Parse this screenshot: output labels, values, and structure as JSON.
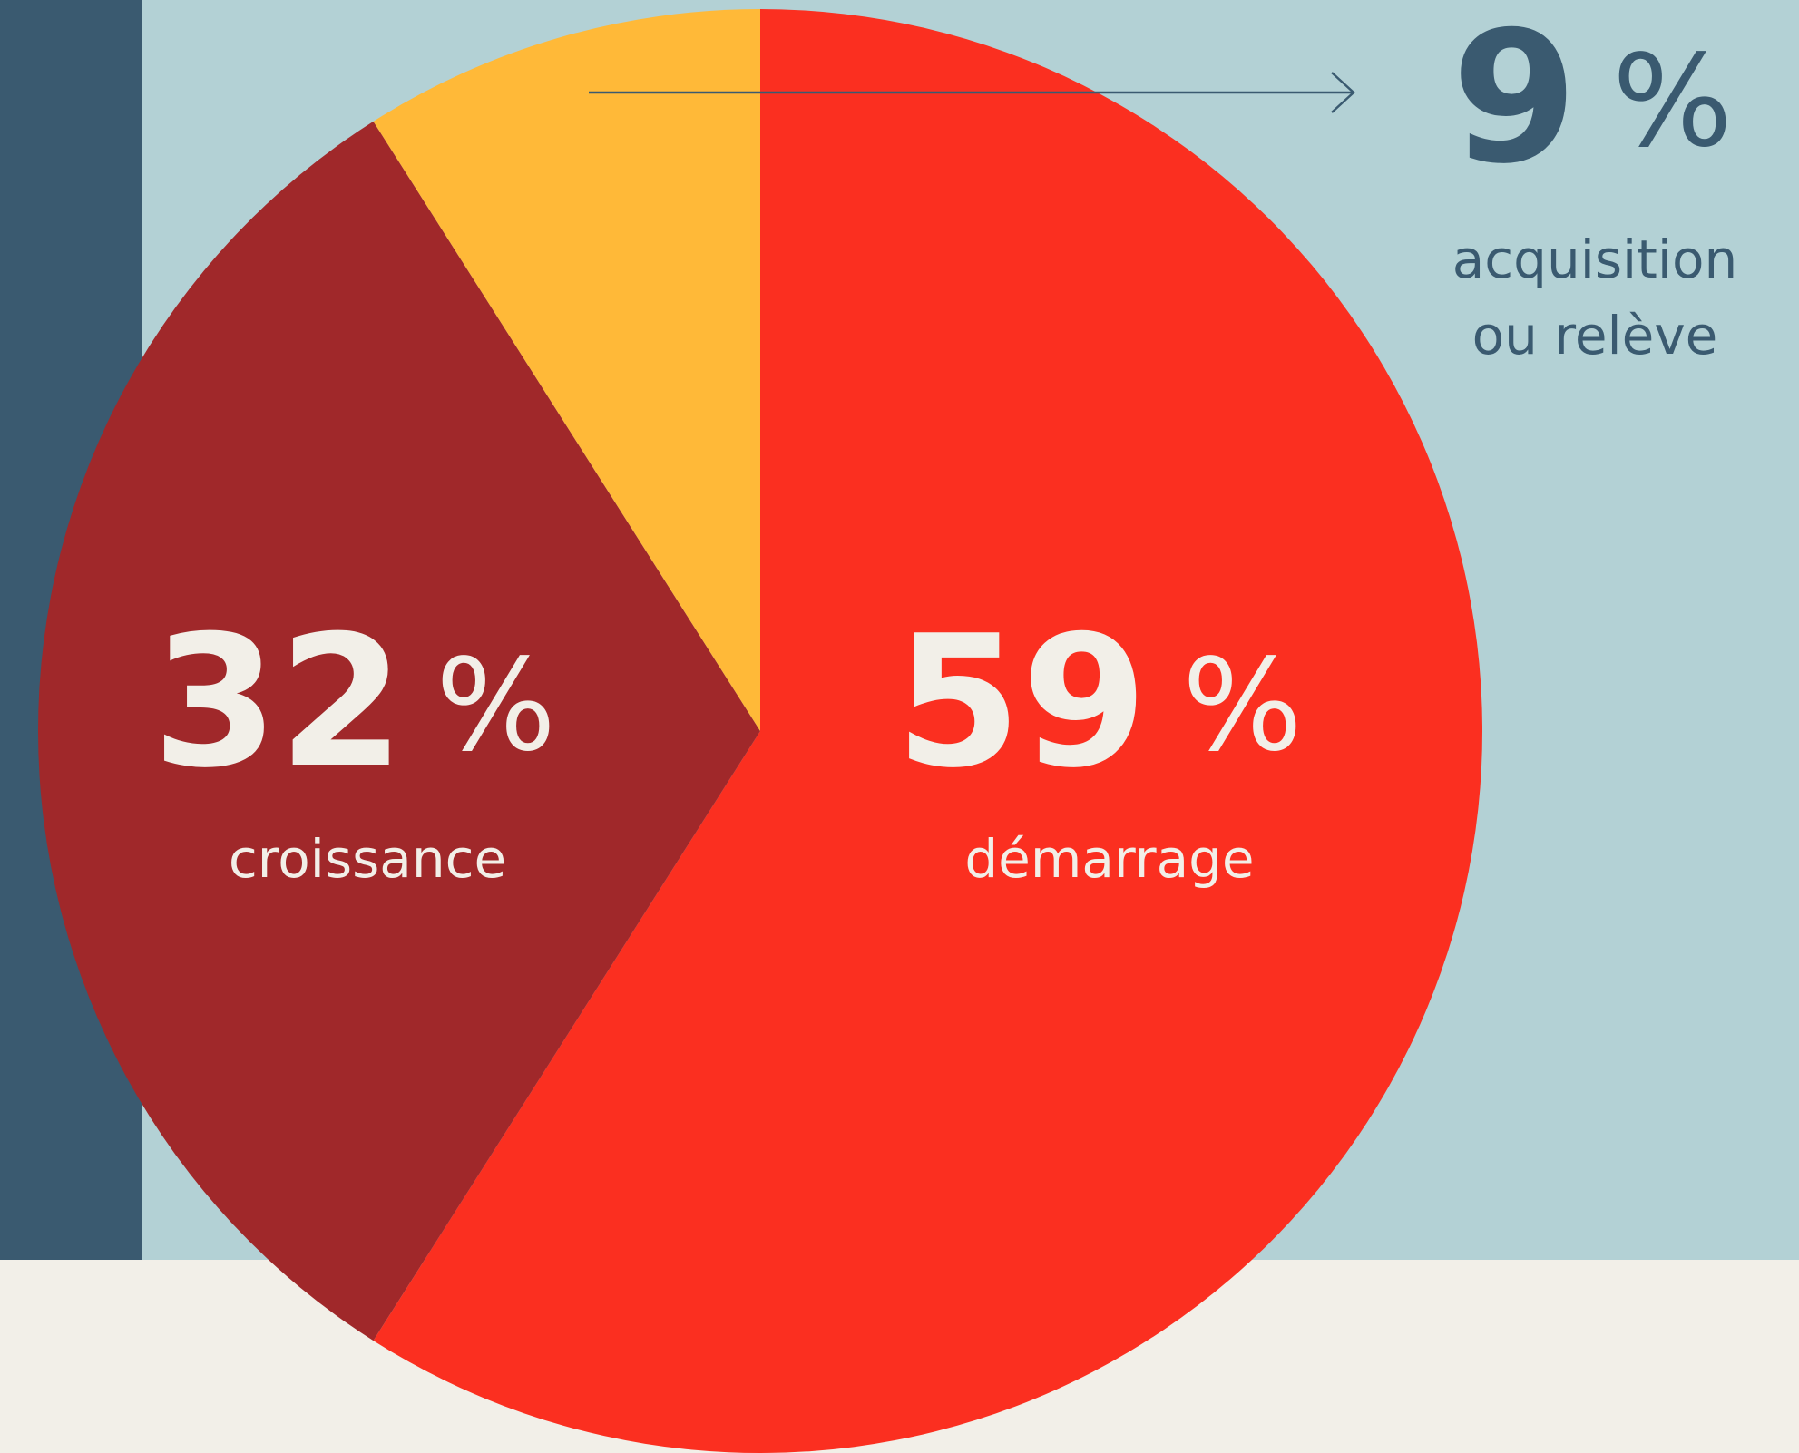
{
  "chart_data": {
    "type": "pie",
    "categories": [
      "démarrage",
      "croissance",
      "acquisition ou relève"
    ],
    "values": [
      59,
      32,
      9
    ],
    "unit": "%",
    "colors": [
      "#fb2f20",
      "#a0282a",
      "#ffb938"
    ]
  }
}
